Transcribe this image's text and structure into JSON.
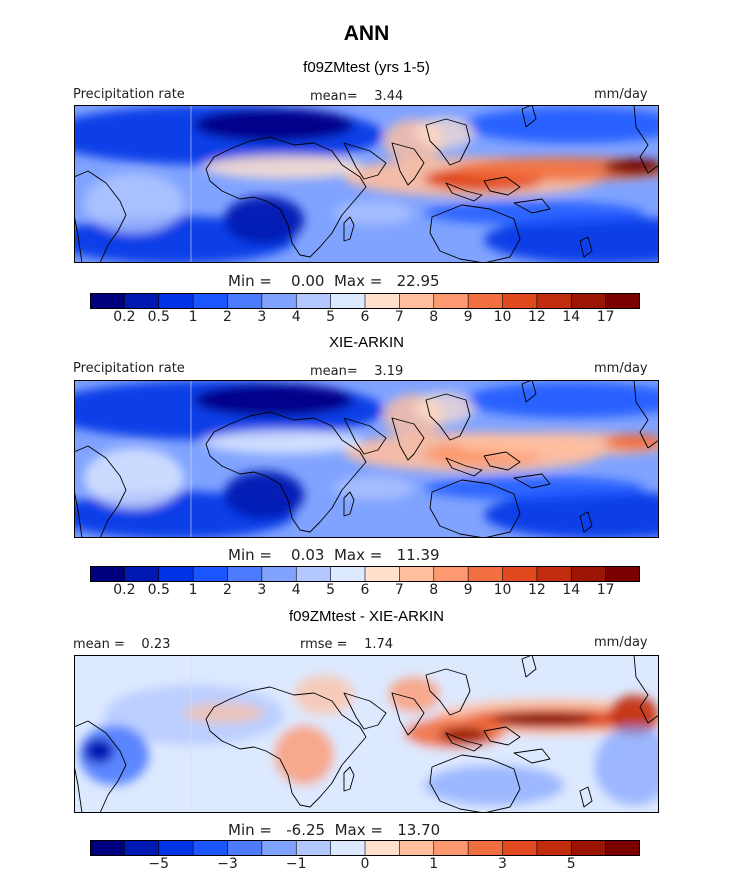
{
  "title": "ANN",
  "panels": [
    {
      "subtitle": "f09ZMtest (yrs 1-5)",
      "left_label": "Precipitation rate",
      "center_label": "mean=    3.44",
      "right_label": "mm/day",
      "stats": "Min =    0.00  Max =   22.95",
      "colorbar_labels": [
        "0.2",
        "0.5",
        "1",
        "2",
        "3",
        "4",
        "5",
        "6",
        "7",
        "8",
        "9",
        "10",
        "12",
        "14",
        "17"
      ],
      "colorbar_type": "sequential"
    },
    {
      "subtitle": "XIE-ARKIN",
      "left_label": "Precipitation rate",
      "center_label": "mean=    3.19",
      "right_label": "mm/day",
      "stats": "Min =    0.03  Max =   11.39",
      "colorbar_labels": [
        "0.2",
        "0.5",
        "1",
        "2",
        "3",
        "4",
        "5",
        "6",
        "7",
        "8",
        "9",
        "10",
        "12",
        "14",
        "17"
      ],
      "colorbar_type": "sequential"
    },
    {
      "subtitle": "f09ZMtest - XIE-ARKIN",
      "left_label": "mean =    0.23",
      "center_label": "rmse =    1.74",
      "right_label": "mm/day",
      "stats": "Min =   -6.25  Max =   13.70",
      "colorbar_labels": [
        "−5",
        "−3",
        "−1",
        "0",
        "1",
        "3",
        "5"
      ],
      "colorbar_type": "difference"
    }
  ],
  "colors": {
    "palette": [
      "#00007f",
      "#0019b2",
      "#0033e5",
      "#1a55ff",
      "#4d7bff",
      "#80a3ff",
      "#b3c8ff",
      "#dde9ff",
      "#ffe0cc",
      "#ffbf9e",
      "#fc9970",
      "#f2703f",
      "#e04a1e",
      "#c22d0f",
      "#9b1404",
      "#7a0000"
    ]
  }
}
